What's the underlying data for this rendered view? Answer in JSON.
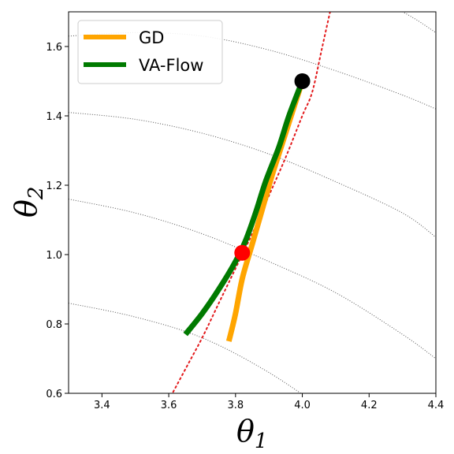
{
  "chart_data": {
    "type": "line",
    "title": "",
    "xlabel": "θ",
    "xlabel_sub": "1",
    "ylabel": "θ",
    "ylabel_sub": "2",
    "xlim": [
      3.3,
      4.4
    ],
    "ylim": [
      0.6,
      1.7
    ],
    "xticks": [
      "3.4",
      "3.6",
      "3.8",
      "4.0",
      "4.2",
      "4.4"
    ],
    "yticks": [
      "0.6",
      "0.8",
      "1.0",
      "1.2",
      "1.4",
      "1.6"
    ],
    "grid": false,
    "legend": {
      "placement": "top-left"
    },
    "series": [
      {
        "name": "GD",
        "color": "#ffa500",
        "points": [
          [
            3.78,
            0.75
          ],
          [
            3.8,
            0.83
          ],
          [
            3.82,
            0.93
          ],
          [
            3.85,
            1.03
          ],
          [
            3.88,
            1.13
          ],
          [
            3.91,
            1.23
          ],
          [
            3.94,
            1.32
          ],
          [
            3.97,
            1.41
          ],
          [
            4.0,
            1.5
          ]
        ]
      },
      {
        "name": "VA-Flow",
        "color": "#007a00",
        "points": [
          [
            3.65,
            0.77
          ],
          [
            3.7,
            0.83
          ],
          [
            3.75,
            0.9
          ],
          [
            3.8,
            0.98
          ],
          [
            3.83,
            1.04
          ],
          [
            3.86,
            1.12
          ],
          [
            3.89,
            1.21
          ],
          [
            3.93,
            1.31
          ],
          [
            3.96,
            1.4
          ],
          [
            4.0,
            1.5
          ]
        ]
      }
    ],
    "reference_curve": {
      "color": "#e31a1c",
      "points": [
        [
          3.6,
          0.58
        ],
        [
          3.65,
          0.67
        ],
        [
          3.7,
          0.76
        ],
        [
          3.75,
          0.86
        ],
        [
          3.8,
          0.96
        ],
        [
          3.85,
          1.06
        ],
        [
          3.9,
          1.17
        ],
        [
          3.95,
          1.28
        ],
        [
          4.0,
          1.4
        ],
        [
          4.03,
          1.47
        ],
        [
          4.06,
          1.6
        ],
        [
          4.09,
          1.73
        ]
      ]
    },
    "contours": [
      [
        [
          3.3,
          0.86
        ],
        [
          3.5,
          0.82
        ],
        [
          3.7,
          0.76
        ],
        [
          3.9,
          0.66
        ],
        [
          4.1,
          0.53
        ]
      ],
      [
        [
          3.3,
          1.16
        ],
        [
          3.5,
          1.12
        ],
        [
          3.7,
          1.06
        ],
        [
          3.9,
          0.98
        ],
        [
          4.1,
          0.89
        ],
        [
          4.3,
          0.77
        ],
        [
          4.4,
          0.7
        ]
      ],
      [
        [
          3.3,
          1.41
        ],
        [
          3.5,
          1.39
        ],
        [
          3.7,
          1.35
        ],
        [
          3.9,
          1.29
        ],
        [
          4.1,
          1.21
        ],
        [
          4.3,
          1.12
        ],
        [
          4.4,
          1.05
        ]
      ],
      [
        [
          3.3,
          1.63
        ],
        [
          3.5,
          1.64
        ],
        [
          3.7,
          1.63
        ],
        [
          3.9,
          1.59
        ],
        [
          4.1,
          1.53
        ],
        [
          4.3,
          1.46
        ],
        [
          4.4,
          1.42
        ]
      ],
      [
        [
          4.1,
          1.79
        ],
        [
          4.3,
          1.7
        ],
        [
          4.4,
          1.64
        ]
      ]
    ],
    "markers": [
      {
        "x": 4.0,
        "y": 1.5,
        "color": "#000000"
      },
      {
        "x": 3.82,
        "y": 1.005,
        "color": "#ff0000"
      }
    ]
  }
}
